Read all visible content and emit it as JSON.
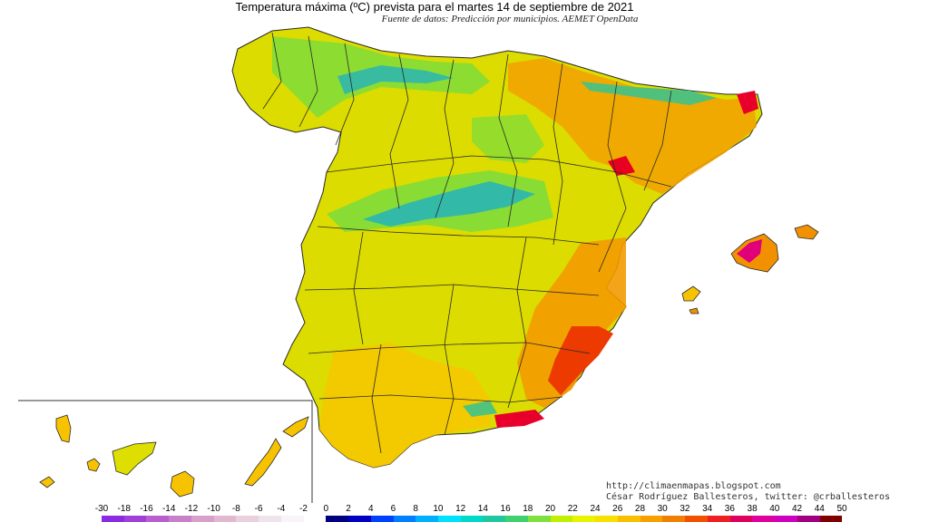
{
  "header": {
    "title": "Temperatura máxima (ºC) prevista para el martes 14 de septiembre de 2021",
    "subtitle": "Fuente de datos: Predicción por municipios. AEMET OpenData"
  },
  "credits": {
    "url": "http://climaenmapas.blogspot.com",
    "author": "César Rodríguez Ballesteros, twitter: @crballesteros"
  },
  "legend": {
    "ticks": [
      "-30",
      "-18",
      "-16",
      "-14",
      "-12",
      "-10",
      "-8",
      "-6",
      "-4",
      "-2",
      "0",
      "2",
      "4",
      "6",
      "8",
      "10",
      "12",
      "14",
      "16",
      "18",
      "20",
      "22",
      "24",
      "26",
      "28",
      "30",
      "32",
      "34",
      "36",
      "38",
      "40",
      "42",
      "44",
      "50"
    ],
    "colors": [
      "#8a2be2",
      "#a040d8",
      "#b860d0",
      "#c880c8",
      "#d8a0c8",
      "#e0b8d0",
      "#e8d0dc",
      "#f0e4ec",
      "#f8f4f8",
      "#ffffff",
      "#000080",
      "#0000c0",
      "#0040ff",
      "#0080ff",
      "#00b0ff",
      "#00e0ff",
      "#00d8c8",
      "#20c8a0",
      "#40d070",
      "#80e040",
      "#c0f000",
      "#e8f400",
      "#f8e000",
      "#f8c000",
      "#f8a000",
      "#f08000",
      "#f05000",
      "#f02020",
      "#e00060",
      "#e000a0",
      "#d000c0",
      "#a00080",
      "#800000"
    ]
  },
  "map": {
    "colors": {
      "land": "#dede00",
      "warm": "#f7c300",
      "hot": "#f29100",
      "very_hot": "#ef4b00",
      "peak": "#e8002b",
      "magenta": "#e0007a",
      "cool": "#7fdc3a",
      "cold": "#3fc28a",
      "colder": "#2ab5b5",
      "border": "#2a2a2a"
    }
  }
}
